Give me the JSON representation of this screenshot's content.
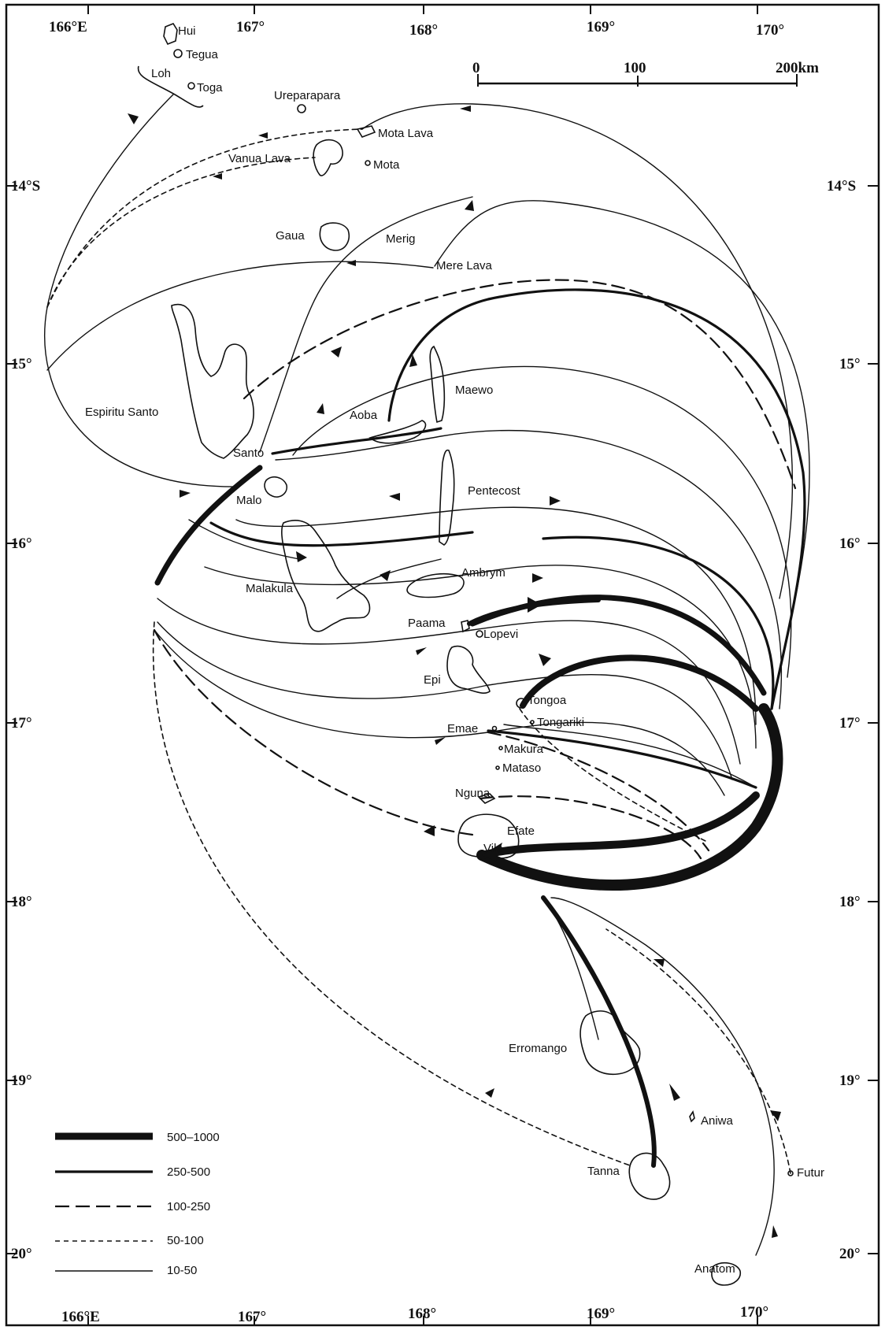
{
  "axes": {
    "lon_top": [
      "166°E",
      "167°",
      "168°",
      "169°",
      "170°"
    ],
    "lon_bottom": [
      "166°E",
      "167°",
      "168°",
      "169°",
      "170°"
    ],
    "lat_left": [
      "14°S",
      "15°",
      "16°",
      "17°",
      "18°",
      "19°",
      "20°"
    ],
    "lat_right": [
      "14°S",
      "15°",
      "16°",
      "17°",
      "18°",
      "19°",
      "20°"
    ]
  },
  "scale": {
    "ticks": [
      "0",
      "100",
      "200km"
    ]
  },
  "places": {
    "hui": "Hui",
    "tegua": "Tegua",
    "loh": "Loh",
    "toga": "Toga",
    "ureparapara": "Ureparapara",
    "mota_lava": "Mota Lava",
    "vanua_lava": "Vanua Lava",
    "mota": "Mota",
    "gaua": "Gaua",
    "merig": "Merig",
    "mere_lava": "Mere Lava",
    "espiritu_santo": "Espiritu Santo",
    "santo": "Santo",
    "malo": "Malo",
    "aoba": "Aoba",
    "maewo": "Maewo",
    "pentecost": "Pentecost",
    "malakula": "Malakula",
    "ambrym": "Ambrym",
    "paama": "Paama",
    "lopevi": "Lopevi",
    "epi": "Epi",
    "tongoa": "Tongoa",
    "tongariki": "Tongariki",
    "emae": "Emae",
    "makura": "Makura",
    "mataso": "Mataso",
    "nguna": "Nguna",
    "efate": "Efate",
    "vila": "Vila",
    "erromango": "Erromango",
    "aniwa": "Aniwa",
    "tanna": "Tanna",
    "futuna": "Futur",
    "anatom": "Anatom"
  },
  "legend": [
    {
      "label": "500–1000",
      "style": "very-thick"
    },
    {
      "label": "250-500",
      "style": "thick"
    },
    {
      "label": "100-250",
      "style": "long-dash"
    },
    {
      "label": "50-100",
      "style": "short-dash"
    },
    {
      "label": "10-50",
      "style": "thin"
    }
  ],
  "colors": {
    "ink": "#111111",
    "paper": "#ffffff"
  }
}
